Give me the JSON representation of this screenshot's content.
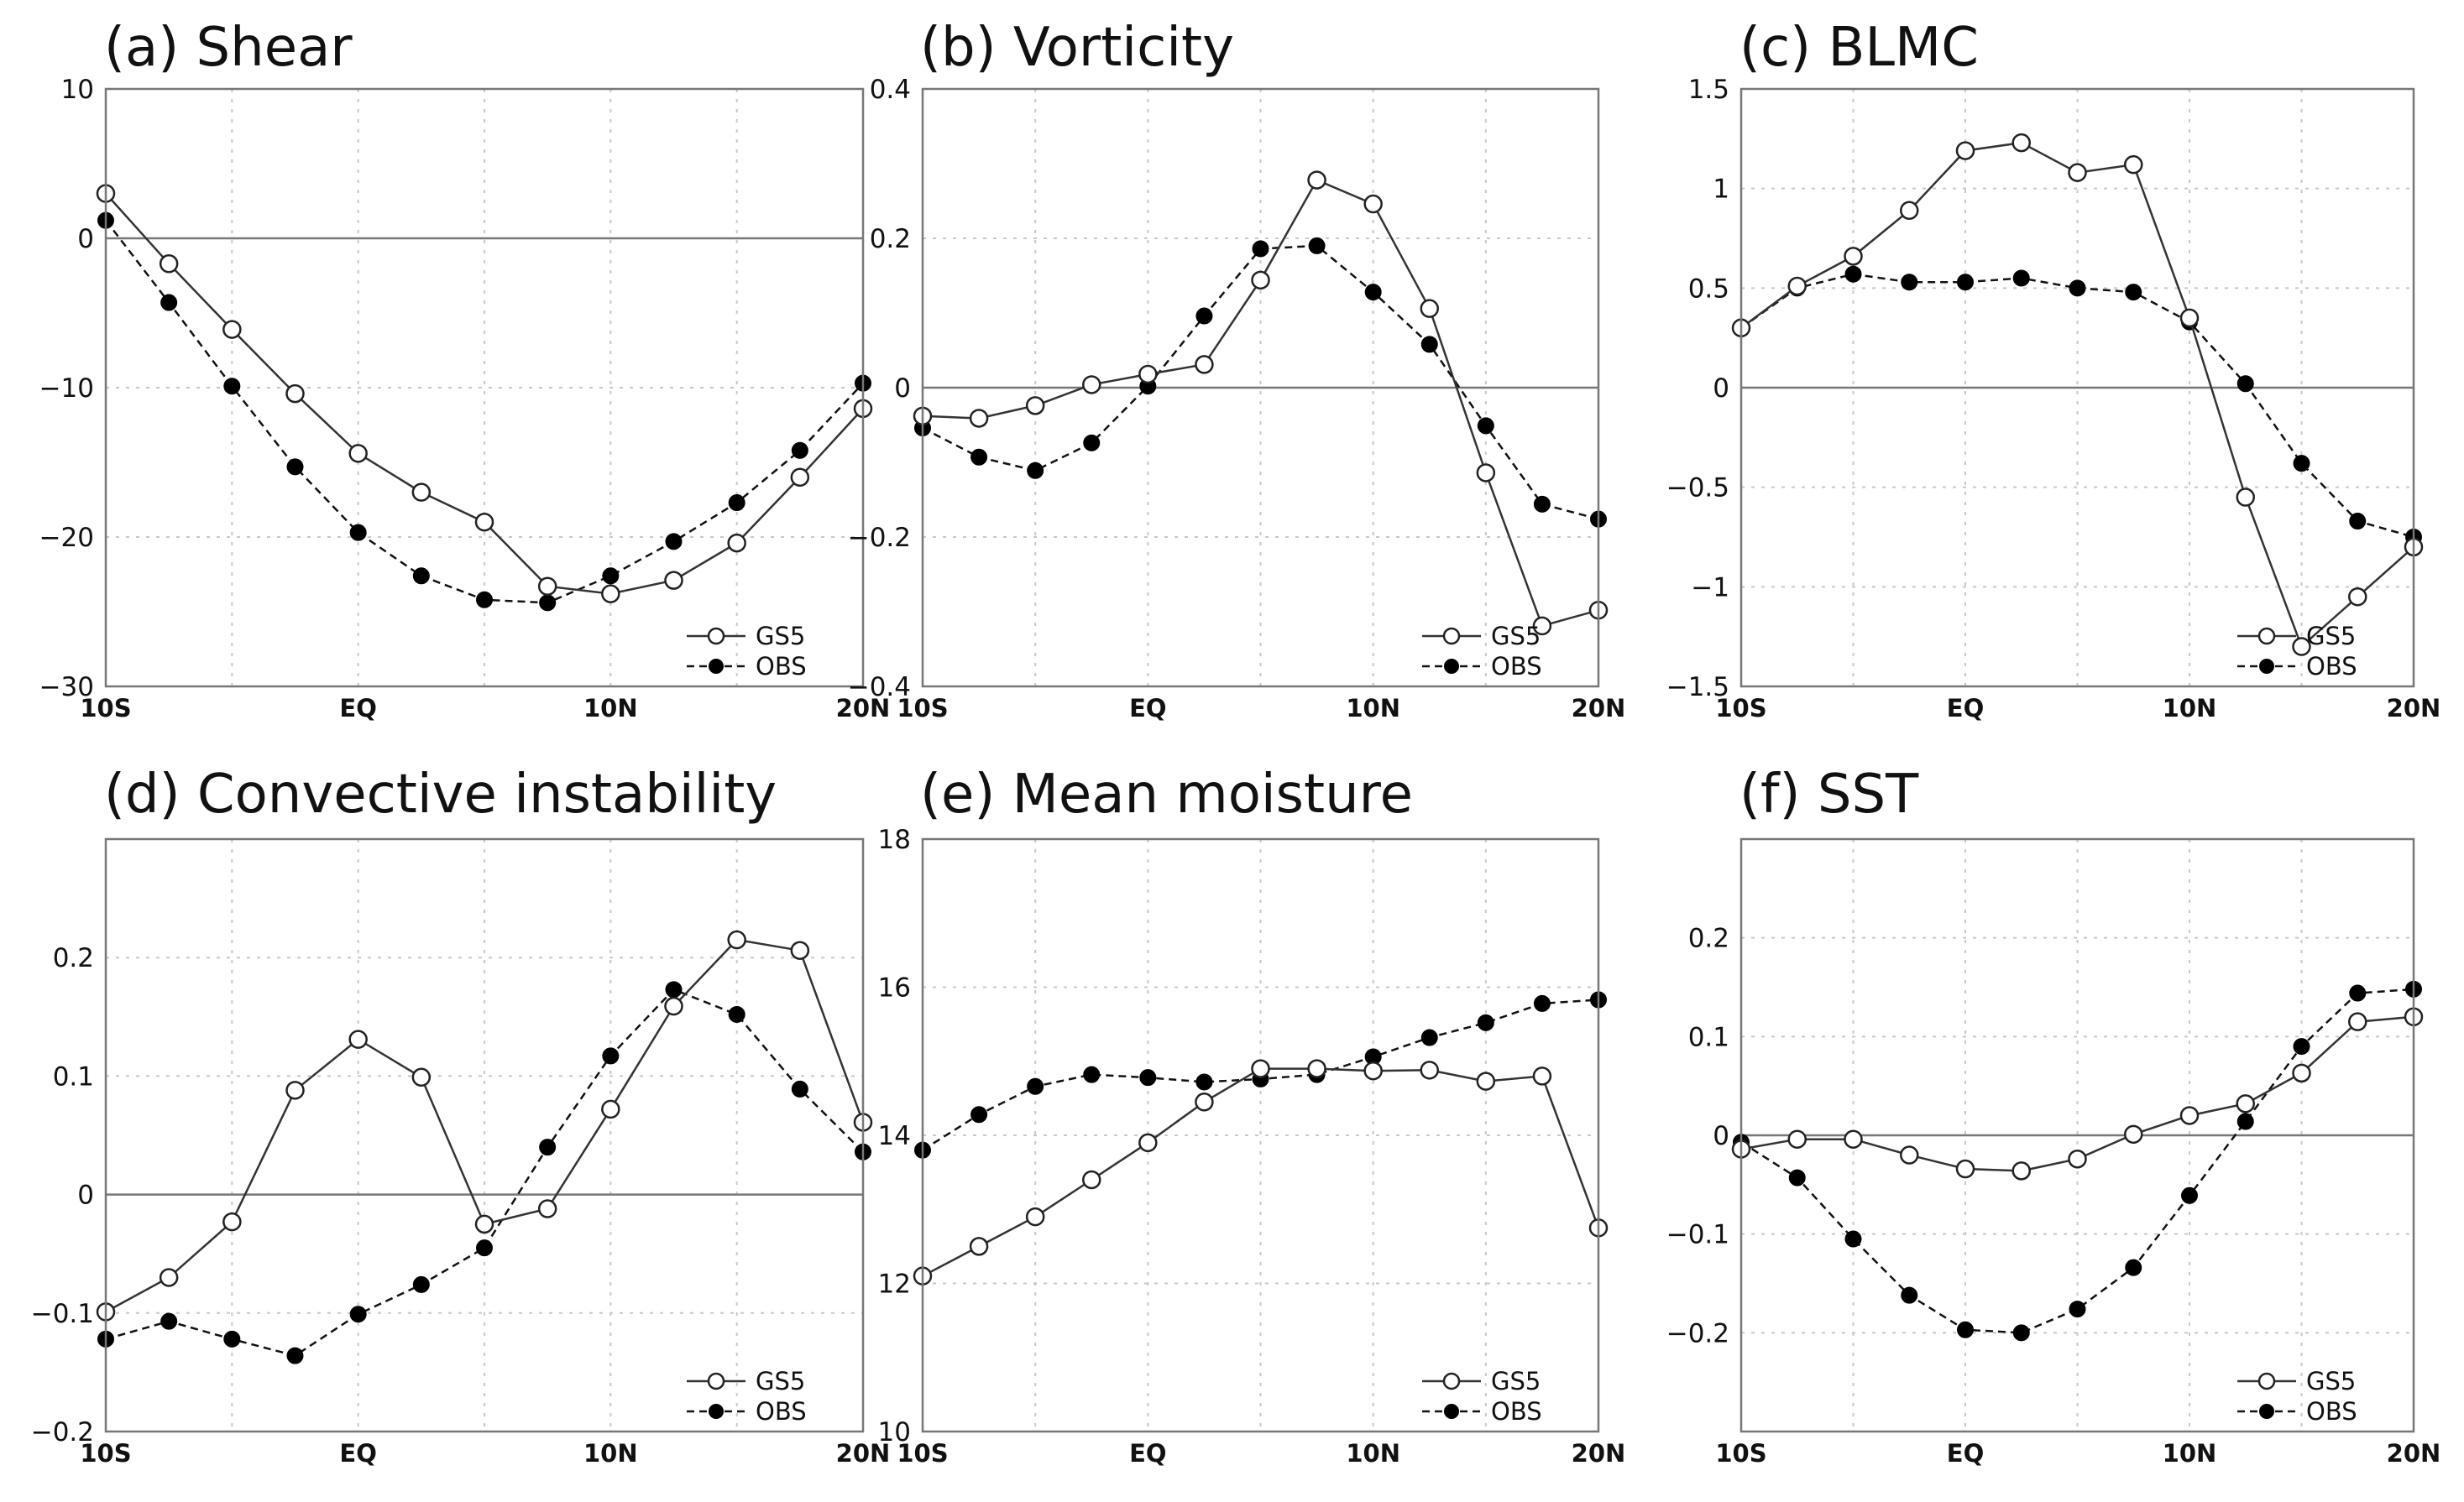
{
  "chart_data": [
    {
      "type": "line",
      "title": "(a) Shear",
      "xlabel": "",
      "ylabel": "",
      "x": [
        -10,
        -7.5,
        -5,
        -2.5,
        0,
        2.5,
        5,
        7.5,
        10,
        12.5,
        15,
        17.5,
        20
      ],
      "xticks": [
        "10S",
        "EQ",
        "10N",
        "20N"
      ],
      "ylim": [
        -30,
        10
      ],
      "yticks": [
        "10",
        "0",
        "−10",
        "−20",
        "−30"
      ],
      "legend_position": "bottom-right",
      "series": [
        {
          "name": "GS5",
          "values": [
            3.0,
            -1.7,
            -6.1,
            -10.4,
            -14.4,
            -17.0,
            -19.0,
            -23.3,
            -23.8,
            -22.9,
            -20.4,
            -16.0,
            -11.4
          ]
        },
        {
          "name": "OBS",
          "values": [
            1.2,
            -4.3,
            -9.9,
            -15.3,
            -19.7,
            -22.6,
            -24.2,
            -24.4,
            -22.6,
            -20.3,
            -17.7,
            -14.2,
            -9.7
          ]
        }
      ]
    },
    {
      "type": "line",
      "title": "(b) Vorticity",
      "xlabel": "",
      "ylabel": "",
      "x": [
        -10,
        -7.5,
        -5,
        -2.5,
        0,
        2.5,
        5,
        7.5,
        10,
        12.5,
        15,
        17.5,
        20
      ],
      "xticks": [
        "10S",
        "EQ",
        "10N",
        "20N"
      ],
      "ylim": [
        -0.4,
        0.4
      ],
      "yticks": [
        "0.4",
        "0.2",
        "0",
        "−0.2",
        "−0.4"
      ],
      "legend_position": "bottom-right",
      "series": [
        {
          "name": "GS5",
          "values": [
            -0.038,
            -0.041,
            -0.024,
            0.004,
            0.018,
            0.031,
            0.144,
            0.278,
            0.246,
            0.106,
            -0.114,
            -0.319,
            -0.298
          ]
        },
        {
          "name": "OBS",
          "values": [
            -0.054,
            -0.093,
            -0.111,
            -0.074,
            0.002,
            0.096,
            0.186,
            0.19,
            0.128,
            0.058,
            -0.051,
            -0.156,
            -0.176
          ]
        }
      ]
    },
    {
      "type": "line",
      "title": "(c) BLMC",
      "xlabel": "",
      "ylabel": "",
      "x": [
        -10,
        -7.5,
        -5,
        -2.5,
        0,
        2.5,
        5,
        7.5,
        10,
        12.5,
        15,
        17.5,
        20
      ],
      "xticks": [
        "10S",
        "EQ",
        "10N",
        "20N"
      ],
      "ylim": [
        -1.5,
        1.5
      ],
      "yticks": [
        "1.5",
        "1",
        "0.5",
        "0",
        "−0.5",
        "−1",
        "−1.5"
      ],
      "legend_position": "bottom-right",
      "series": [
        {
          "name": "GS5",
          "values": [
            0.3,
            0.51,
            0.66,
            0.89,
            1.19,
            1.23,
            1.08,
            1.12,
            0.35,
            -0.55,
            -1.3,
            -1.05,
            -0.8
          ]
        },
        {
          "name": "OBS",
          "values": [
            0.3,
            0.5,
            0.57,
            0.53,
            0.53,
            0.55,
            0.5,
            0.48,
            0.33,
            0.02,
            -0.38,
            -0.67,
            -0.75
          ]
        }
      ]
    },
    {
      "type": "line",
      "title": "(d) Convective instability",
      "xlabel": "",
      "ylabel": "",
      "x": [
        -10,
        -7.5,
        -5,
        -2.5,
        0,
        2.5,
        5,
        7.5,
        10,
        12.5,
        15,
        17.5,
        20
      ],
      "xticks": [
        "10S",
        "EQ",
        "10N",
        "20N"
      ],
      "ylim": [
        -0.2,
        0.3
      ],
      "yticks": [
        "0.2",
        "0.1",
        "0",
        "−0.1",
        "−0.2"
      ],
      "legend_position": "bottom-right",
      "series": [
        {
          "name": "GS5",
          "values": [
            -0.099,
            -0.07,
            -0.023,
            0.088,
            0.131,
            0.099,
            -0.025,
            -0.012,
            0.072,
            0.159,
            0.215,
            0.206,
            0.061
          ]
        },
        {
          "name": "OBS",
          "values": [
            -0.122,
            -0.107,
            -0.122,
            -0.136,
            -0.101,
            -0.076,
            -0.045,
            0.04,
            0.117,
            0.173,
            0.152,
            0.089,
            0.036
          ]
        }
      ]
    },
    {
      "type": "line",
      "title": "(e) Mean moisture",
      "xlabel": "",
      "ylabel": "",
      "x": [
        -10,
        -7.5,
        -5,
        -2.5,
        0,
        2.5,
        5,
        7.5,
        10,
        12.5,
        15,
        17.5,
        20
      ],
      "xticks": [
        "10S",
        "EQ",
        "10N",
        "20N"
      ],
      "ylim": [
        10,
        18
      ],
      "yticks": [
        "18",
        "16",
        "14",
        "12",
        "10"
      ],
      "legend_position": "bottom-right",
      "series": [
        {
          "name": "GS5",
          "values": [
            12.1,
            12.5,
            12.9,
            13.4,
            13.9,
            14.45,
            14.9,
            14.9,
            14.87,
            14.88,
            14.73,
            14.8,
            12.75
          ]
        },
        {
          "name": "OBS",
          "values": [
            13.8,
            14.28,
            14.66,
            14.82,
            14.78,
            14.72,
            14.76,
            14.82,
            15.06,
            15.32,
            15.52,
            15.78,
            15.83
          ]
        }
      ]
    },
    {
      "type": "line",
      "title": "(f) SST",
      "xlabel": "",
      "ylabel": "",
      "x": [
        -10,
        -7.5,
        -5,
        -2.5,
        0,
        2.5,
        5,
        7.5,
        10,
        12.5,
        15,
        17.5,
        20
      ],
      "xticks": [
        "10S",
        "EQ",
        "10N",
        "20N"
      ],
      "ylim": [
        -0.3,
        0.3
      ],
      "yticks": [
        "0.2",
        "0.1",
        "0",
        "−0.1",
        "−0.2"
      ],
      "legend_position": "bottom-right",
      "series": [
        {
          "name": "GS5",
          "values": [
            -0.014,
            -0.004,
            -0.004,
            -0.02,
            -0.034,
            -0.036,
            -0.024,
            0.001,
            0.02,
            0.032,
            0.063,
            0.115,
            0.12
          ]
        },
        {
          "name": "OBS",
          "values": [
            -0.007,
            -0.043,
            -0.105,
            -0.162,
            -0.197,
            -0.2,
            -0.176,
            -0.134,
            -0.061,
            0.014,
            0.09,
            0.144,
            0.148
          ]
        }
      ]
    }
  ]
}
